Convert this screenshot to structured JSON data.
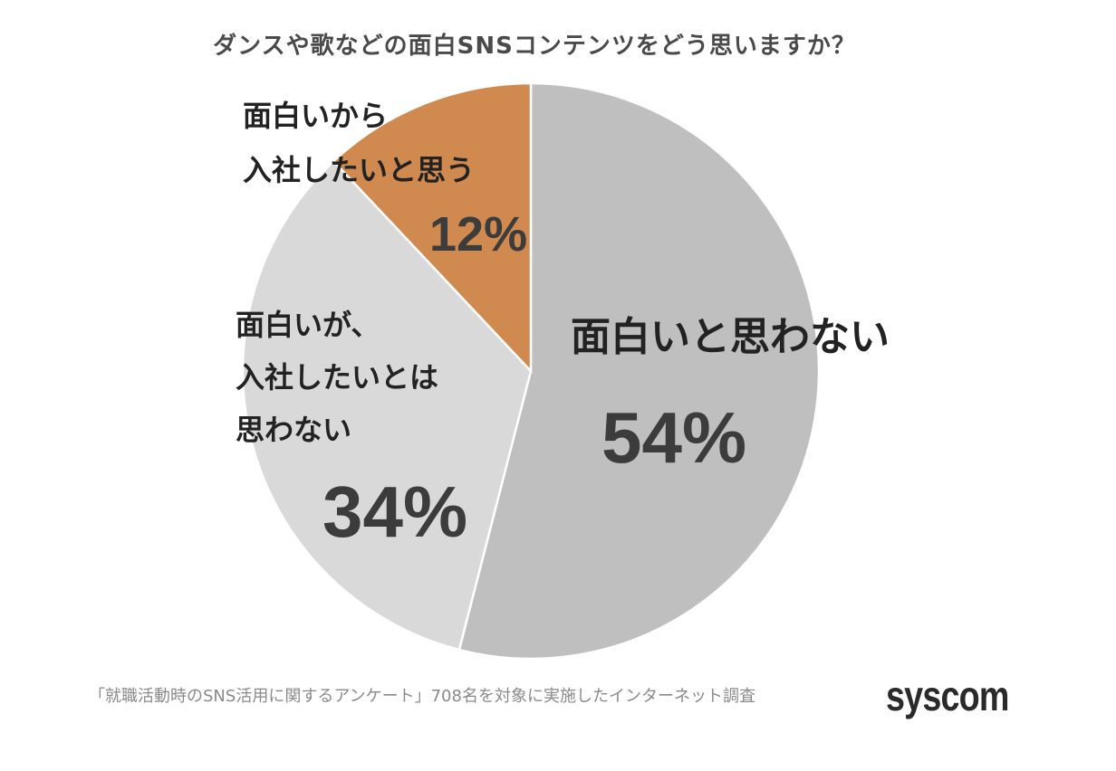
{
  "chart_data": {
    "type": "pie",
    "title": "ダンスや歌などの面白SNSコンテンツをどう思いますか？",
    "start_angle": "12 o'clock, clockwise",
    "slices": [
      {
        "label": "面白いと思わない",
        "value": 54,
        "display": "54%",
        "color": "#bfbfbf"
      },
      {
        "label": "面白いが、入社したいとは思わない",
        "value": 34,
        "display": "34%",
        "color": "#d9d9d9"
      },
      {
        "label": "面白いから入社したいと思う",
        "value": 12,
        "display": "12%",
        "color": "#d08a50"
      }
    ],
    "labels_display": {
      "s0": [
        "面白いと思わない"
      ],
      "s1": [
        "面白いが、",
        "入社したいとは",
        "思わない"
      ],
      "s2": [
        "面白いから",
        "入社したいと思う"
      ]
    },
    "note": "「就職活動時のSNS活用に関するアンケート」708名を対象に実施したインターネット調査",
    "sample_size": 708,
    "brand": "syscom"
  }
}
